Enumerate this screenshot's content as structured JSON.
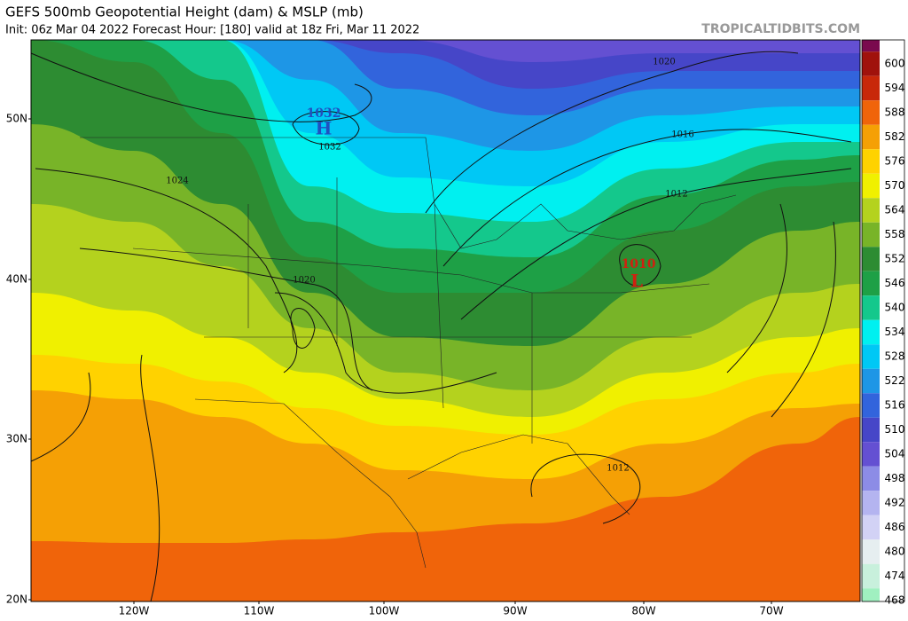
{
  "header": {
    "title": "GEFS 500mb Geopotential Height (dam) & MSLP (mb)",
    "subtitle": "Init: 06z Mar 04 2022   Forecast Hour: [180]   valid at 18z Fri, Mar 11 2022",
    "credit": "TROPICALTIDBITS.COM"
  },
  "axis": {
    "lat_labels": [
      "50N",
      "40N",
      "30N",
      "20N"
    ],
    "lon_labels": [
      "120W",
      "110W",
      "100W",
      "90W",
      "80W",
      "70W"
    ]
  },
  "colorbar": {
    "cap_color": "#7a0a4e",
    "levels": [
      600,
      594,
      588,
      582,
      576,
      570,
      564,
      558,
      552,
      546,
      540,
      534,
      528,
      522,
      516,
      510,
      504,
      498,
      492,
      486,
      480,
      474,
      468
    ],
    "colors": [
      "#a0120c",
      "#c8280a",
      "#f0640a",
      "#f5a005",
      "#ffd200",
      "#f0f000",
      "#b4d21e",
      "#78b428",
      "#2d8c32",
      "#1ea046",
      "#14c88c",
      "#00f0f0",
      "#00c8f5",
      "#1e96e6",
      "#3264dc",
      "#4646c8",
      "#6450d2",
      "#8c8ce6",
      "#b4b4f0",
      "#d2d2f5",
      "#e6eef0",
      "#c8f0dc",
      "#a0f0c0"
    ]
  },
  "annotations": [
    {
      "text": "1032",
      "color": "#2050c0"
    },
    {
      "text": "H",
      "color": "#2050c0"
    },
    {
      "text": "1032",
      "color": "#111111"
    },
    {
      "text": "1024",
      "color": "#111111"
    },
    {
      "text": "1020",
      "color": "#111111"
    },
    {
      "text": "1020",
      "color": "#111111"
    },
    {
      "text": "1016",
      "color": "#111111"
    },
    {
      "text": "1012",
      "color": "#111111"
    },
    {
      "text": "1012",
      "color": "#111111"
    },
    {
      "text": "1010",
      "color": "#d02010"
    },
    {
      "text": "L",
      "color": "#d02010"
    }
  ]
}
